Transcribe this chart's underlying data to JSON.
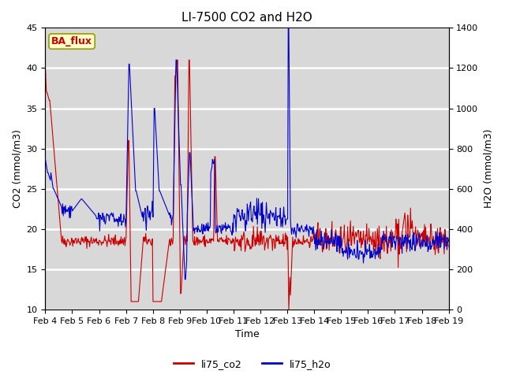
{
  "title": "LI-7500 CO2 and H2O",
  "xlabel": "Time",
  "ylabel_left": "CO2 (mmol/m3)",
  "ylabel_right": "H2O (mmol/m3)",
  "ylim_left": [
    10,
    45
  ],
  "ylim_right": [
    0,
    1400
  ],
  "yticks_left": [
    10,
    15,
    20,
    25,
    30,
    35,
    40,
    45
  ],
  "yticks_right": [
    0,
    200,
    400,
    600,
    800,
    1000,
    1200,
    1400
  ],
  "xtick_labels": [
    "Feb 4",
    "Feb 5",
    "Feb 6",
    "Feb 7",
    "Feb 8",
    "Feb 9",
    "Feb 10",
    "Feb 11",
    "Feb 12",
    "Feb 13",
    "Feb 14",
    "Feb 15",
    "Feb 16",
    "Feb 17",
    "Feb 18",
    "Feb 19"
  ],
  "co2_color": "#cc0000",
  "h2o_color": "#0000cc",
  "legend_label_co2": "li75_co2",
  "legend_label_h2o": "li75_h2o",
  "badge_text": "BA_flux",
  "badge_facecolor": "#ffffcc",
  "badge_edgecolor": "#999900",
  "badge_textcolor": "#cc0000",
  "axes_facecolor": "#d8d8d8",
  "grid_color": "#ebebeb",
  "linewidth": 0.8,
  "title_fontsize": 11,
  "axis_fontsize": 9,
  "tick_fontsize": 8
}
